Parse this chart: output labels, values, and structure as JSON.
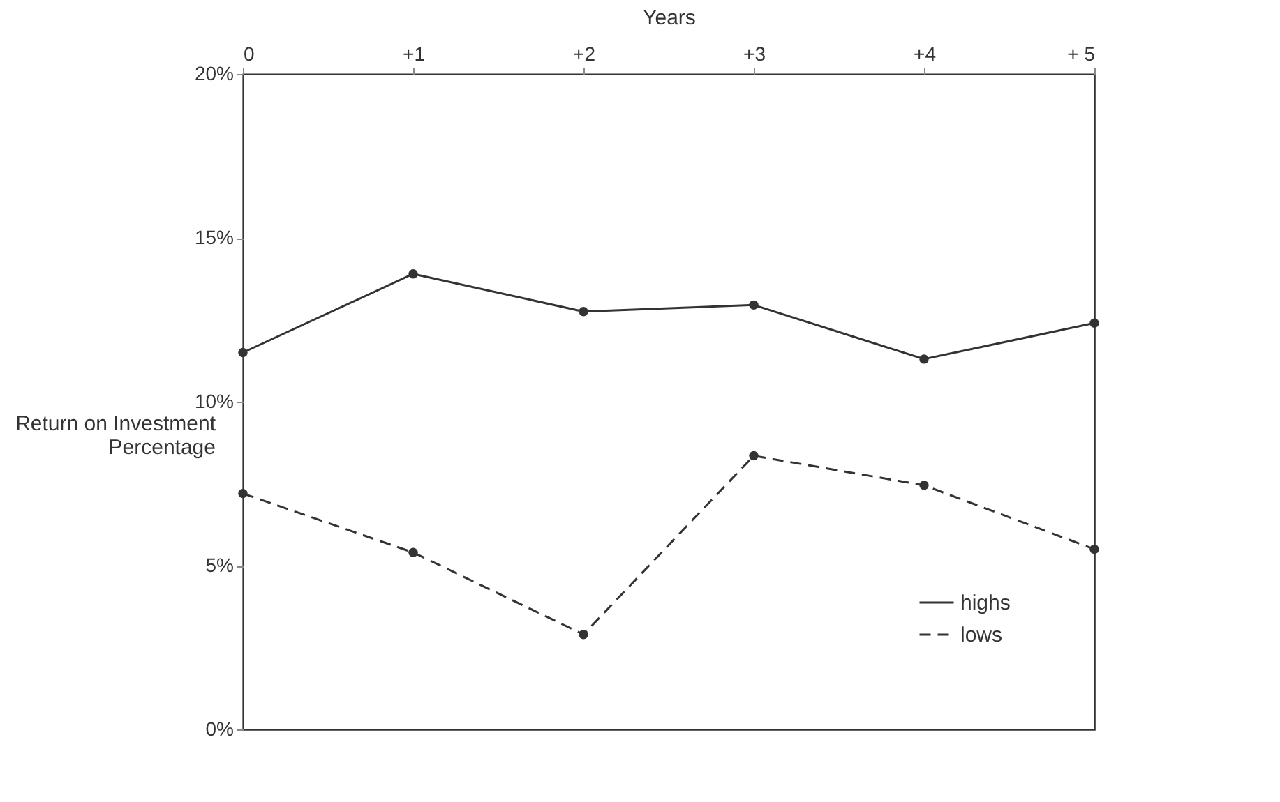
{
  "chart_data": {
    "type": "line",
    "xlabel": "Years",
    "ylabel": "Return on Investment Percentage",
    "categories": [
      "0",
      "+1",
      "+2",
      "+3",
      "+4",
      "+ 5"
    ],
    "series": [
      {
        "name": "highs",
        "color": "#333333",
        "line_style": "solid",
        "values": [
          11.5,
          13.9,
          12.75,
          12.95,
          11.3,
          12.4
        ]
      },
      {
        "name": "lows",
        "color": "#333333",
        "line_style": "dashed",
        "values": [
          7.2,
          5.4,
          2.9,
          8.35,
          7.45,
          5.5
        ]
      }
    ],
    "ylim": [
      0,
      20
    ],
    "yticks": [
      {
        "value": 0,
        "label": "0%"
      },
      {
        "value": 5,
        "label": "5%"
      },
      {
        "value": 10,
        "label": "10%"
      },
      {
        "value": 15,
        "label": "15%"
      },
      {
        "value": 20,
        "label": "20%"
      }
    ],
    "marker": "circle",
    "grid": false,
    "legend": "bottom right"
  }
}
